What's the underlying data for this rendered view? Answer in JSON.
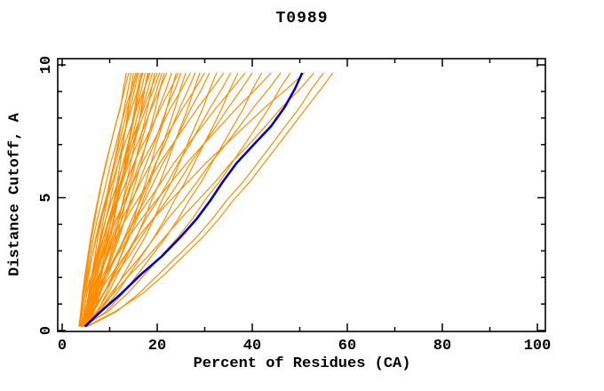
{
  "chart_data": {
    "type": "line",
    "title": "T0989",
    "xlabel": "Percent of Residues (CA)",
    "ylabel": "Distance Cutoff, A",
    "xlim": [
      0,
      100
    ],
    "ylim": [
      0,
      10
    ],
    "x_major_ticks": [
      0,
      20,
      40,
      60,
      80,
      100
    ],
    "x_minor_ticks": [
      10,
      30,
      50,
      70,
      90
    ],
    "y_major_ticks": [
      0,
      5,
      10
    ],
    "y_minor_ticks": [
      1,
      2,
      3,
      4,
      6,
      7,
      8,
      9
    ],
    "grid": false,
    "legend": "none",
    "axis_color": "#000000",
    "series_color": "#ff8c00",
    "highlight_color": "#0000cd",
    "y_samples": [
      0.15,
      0.7,
      1.4,
      2.1,
      2.8,
      3.5,
      4.2,
      4.9,
      5.6,
      6.3,
      7.0,
      7.7,
      8.4,
      9.1,
      9.7
    ],
    "highlight_series_x": [
      4.8,
      8.0,
      12.5,
      16.5,
      21.0,
      24.8,
      28.3,
      31.2,
      33.8,
      36.7,
      40.3,
      44.0,
      46.8,
      49.0,
      50.5
    ],
    "series_x": [
      [
        3.6,
        3.9,
        4.3,
        4.8,
        5.4,
        6.0,
        6.7,
        7.5,
        8.3,
        9.2,
        10.2,
        11.2,
        12.3,
        12.9,
        13.5
      ],
      [
        4.5,
        5.1,
        5.8,
        6.5,
        7.3,
        8.0,
        8.7,
        9.5,
        10.2,
        10.9,
        11.7,
        12.4,
        13.1,
        13.9,
        14.5
      ],
      [
        5.0,
        6.2,
        7.2,
        8.0,
        8.8,
        9.6,
        10.3,
        10.9,
        11.6,
        12.2,
        12.8,
        13.4,
        14.0,
        14.5,
        15.0
      ],
      [
        3.8,
        4.0,
        4.5,
        5.2,
        5.9,
        6.6,
        7.4,
        8.4,
        9.3,
        10.2,
        11.3,
        12.3,
        13.4,
        14.6,
        15.5
      ],
      [
        4.2,
        4.9,
        5.7,
        6.6,
        7.5,
        8.3,
        9.2,
        10.1,
        10.9,
        11.8,
        12.7,
        13.5,
        14.3,
        15.3,
        16.0
      ],
      [
        4.8,
        6.2,
        7.4,
        8.3,
        9.2,
        10.2,
        11.0,
        11.7,
        12.5,
        13.2,
        13.9,
        14.6,
        15.3,
        15.9,
        16.5
      ],
      [
        4.0,
        4.3,
        4.8,
        5.6,
        6.3,
        7.1,
        8.0,
        9.1,
        10.1,
        11.2,
        12.3,
        13.5,
        14.7,
        16.0,
        17.0
      ],
      [
        4.4,
        5.2,
        6.1,
        7.1,
        8.1,
        9.0,
        9.9,
        10.9,
        11.9,
        12.8,
        13.8,
        14.7,
        15.7,
        16.7,
        17.5
      ],
      [
        5.2,
        6.7,
        8.0,
        9.0,
        10.1,
        11.1,
        12.0,
        12.8,
        13.6,
        14.4,
        15.2,
        16.0,
        16.7,
        17.4,
        18.0
      ],
      [
        3.6,
        3.9,
        4.5,
        5.4,
        6.3,
        7.2,
        8.2,
        9.4,
        10.6,
        11.8,
        13.1,
        14.5,
        15.8,
        17.3,
        18.5
      ],
      [
        4.1,
        5.0,
        6.0,
        7.1,
        8.3,
        9.3,
        10.4,
        11.6,
        12.6,
        13.7,
        14.8,
        15.9,
        16.9,
        18.1,
        19.0
      ],
      [
        4.7,
        6.5,
        8.0,
        9.1,
        10.3,
        11.5,
        12.5,
        13.4,
        14.5,
        15.4,
        16.2,
        17.1,
        18.0,
        18.8,
        19.5
      ],
      [
        4.3,
        4.6,
        5.2,
        6.2,
        7.1,
        8.1,
        9.2,
        10.4,
        11.7,
        12.9,
        14.3,
        15.8,
        17.2,
        18.7,
        20.0
      ],
      [
        4.9,
        5.9,
        7.0,
        8.1,
        9.4,
        10.5,
        11.7,
        12.9,
        14.1,
        15.2,
        16.5,
        17.6,
        18.7,
        20.0,
        21.0
      ],
      [
        3.9,
        6.0,
        7.8,
        9.2,
        10.6,
        12.0,
        13.2,
        14.3,
        15.5,
        16.6,
        17.6,
        18.7,
        19.7,
        20.6,
        21.5
      ],
      [
        4.5,
        4.9,
        5.6,
        6.6,
        7.7,
        8.7,
        9.9,
        11.3,
        12.7,
        14.1,
        15.7,
        17.3,
        18.9,
        20.6,
        22.0
      ],
      [
        4.2,
        5.3,
        6.6,
        8.0,
        9.5,
        10.8,
        12.1,
        13.5,
        14.9,
        16.2,
        17.7,
        19.1,
        20.4,
        21.9,
        23.0
      ],
      [
        5.1,
        7.4,
        9.3,
        10.8,
        12.3,
        13.8,
        15.1,
        16.3,
        17.6,
        18.7,
        19.8,
        21.0,
        22.1,
        23.1,
        24.0
      ],
      [
        3.7,
        4.1,
        4.9,
        6.2,
        7.4,
        8.7,
        10.1,
        11.8,
        13.5,
        15.1,
        17.0,
        18.9,
        20.8,
        22.8,
        24.5
      ],
      [
        4.6,
        5.8,
        7.3,
        8.7,
        10.3,
        11.7,
        13.2,
        14.8,
        16.2,
        17.7,
        19.3,
        20.7,
        22.1,
        23.8,
        25.0
      ],
      [
        4.0,
        6.6,
        8.8,
        10.6,
        12.4,
        14.1,
        15.7,
        17.0,
        18.5,
        19.8,
        21.2,
        22.5,
        23.8,
        24.9,
        26.0
      ],
      [
        4.4,
        4.9,
        5.8,
        7.1,
        8.5,
        9.8,
        11.4,
        13.2,
        15.0,
        16.8,
        18.9,
        20.9,
        22.9,
        25.2,
        27.0
      ],
      [
        5.0,
        6.4,
        8.0,
        9.6,
        11.4,
        13.1,
        14.7,
        16.5,
        18.1,
        19.7,
        21.6,
        23.2,
        24.8,
        26.6,
        28.0
      ],
      [
        4.2,
        7.2,
        9.7,
        11.6,
        13.6,
        15.6,
        17.3,
        18.8,
        20.6,
        22.1,
        23.5,
        25.0,
        26.5,
        27.8,
        29.0
      ],
      [
        4.8,
        5.3,
        6.3,
        7.8,
        9.3,
        10.8,
        12.6,
        14.6,
        16.6,
        18.7,
        20.9,
        23.2,
        25.5,
        28.0,
        30.0
      ],
      [
        3.8,
        5.4,
        7.3,
        9.2,
        11.4,
        13.3,
        15.2,
        17.4,
        19.3,
        21.2,
        23.4,
        25.3,
        27.2,
        29.4,
        31.0
      ],
      [
        4.5,
        7.9,
        10.7,
        12.9,
        15.1,
        17.4,
        19.3,
        21.0,
        23.0,
        24.7,
        26.3,
        28.0,
        29.7,
        31.1,
        32.5
      ],
      [
        4.1,
        4.7,
        5.9,
        7.7,
        9.5,
        11.3,
        13.4,
        15.8,
        18.2,
        20.5,
        23.2,
        25.9,
        28.6,
        31.6,
        34.0
      ],
      [
        4.7,
        6.5,
        8.7,
        10.9,
        13.3,
        15.5,
        17.6,
        20.1,
        22.3,
        24.4,
        26.9,
        29.0,
        31.2,
        33.6,
        35.5
      ],
      [
        4.3,
        8.2,
        11.5,
        14.1,
        16.7,
        19.3,
        21.6,
        23.6,
        25.9,
        27.8,
        29.8,
        31.8,
        33.7,
        35.4,
        37.0
      ],
      [
        5.2,
        5.9,
        7.2,
        9.2,
        11.2,
        13.2,
        15.5,
        18.2,
        20.9,
        23.5,
        26.5,
        29.5,
        32.5,
        35.8,
        38.5
      ],
      [
        4.0,
        6.2,
        8.7,
        11.2,
        14.1,
        16.6,
        19.1,
        22.0,
        24.6,
        27.0,
        29.8,
        32.4,
        35.0,
        37.8,
        40.0
      ],
      [
        4.6,
        9.1,
        12.8,
        15.8,
        18.8,
        21.8,
        24.4,
        26.7,
        29.3,
        31.5,
        33.8,
        36.0,
        38.3,
        40.1,
        42.0
      ],
      [
        4.4,
        5.2,
        6.8,
        9.2,
        11.5,
        13.9,
        16.7,
        19.8,
        23.0,
        26.2,
        29.7,
        33.3,
        36.9,
        40.8,
        44.0
      ],
      [
        5.0,
        7.5,
        10.3,
        13.2,
        16.5,
        19.4,
        22.2,
        25.5,
        28.4,
        31.2,
        34.4,
        37.4,
        40.3,
        43.5,
        46.0
      ],
      [
        4.2,
        9.5,
        13.8,
        17.3,
        20.8,
        24.3,
        27.4,
        30.0,
        33.1,
        35.7,
        38.4,
        41.0,
        43.6,
        45.8,
        48.0
      ],
      [
        4.8,
        5.7,
        7.6,
        10.3,
        13.1,
        15.9,
        19.1,
        22.8,
        26.5,
        30.2,
        34.4,
        38.5,
        42.7,
        47.3,
        51.0
      ],
      [
        4.5,
        7.4,
        10.8,
        14.2,
        18.1,
        21.5,
        24.9,
        28.6,
        32.2,
        35.5,
        39.3,
        42.8,
        46.2,
        50.1,
        53.0
      ],
      [
        5.3,
        11.3,
        16.2,
        20.2,
        24.2,
        28.2,
        31.6,
        34.6,
        38.1,
        41.1,
        44.1,
        47.0,
        50.0,
        52.5,
        55.0
      ],
      [
        5.0,
        11.0,
        17.0,
        21.5,
        25.5,
        29.5,
        33.0,
        36.0,
        39.5,
        42.5,
        45.5,
        48.5,
        51.5,
        54.5,
        57.0
      ],
      [
        3.5,
        4.0,
        4.5,
        5.0,
        5.6,
        6.2,
        6.9,
        7.6,
        8.4,
        9.3,
        10.2,
        11.2,
        12.2,
        13.2,
        14.0
      ],
      [
        4.9,
        5.1,
        5.6,
        6.2,
        6.9,
        7.5,
        8.3,
        9.2,
        10.0,
        10.9,
        11.9,
        12.9,
        13.8,
        14.9,
        15.8
      ],
      [
        4.1,
        5.6,
        6.9,
        7.9,
        8.9,
        9.9,
        10.8,
        11.6,
        12.5,
        13.2,
        14.0,
        14.8,
        15.5,
        16.2,
        16.8
      ],
      [
        4.6,
        5.4,
        6.4,
        7.4,
        8.4,
        9.4,
        10.4,
        11.4,
        12.4,
        13.4,
        14.4,
        15.3,
        16.3,
        17.3,
        18.2
      ],
      [
        5.0,
        5.3,
        5.9,
        6.9,
        7.8,
        8.7,
        9.8,
        11.0,
        12.3,
        13.5,
        14.9,
        16.3,
        17.7,
        19.3,
        20.5
      ]
    ]
  }
}
